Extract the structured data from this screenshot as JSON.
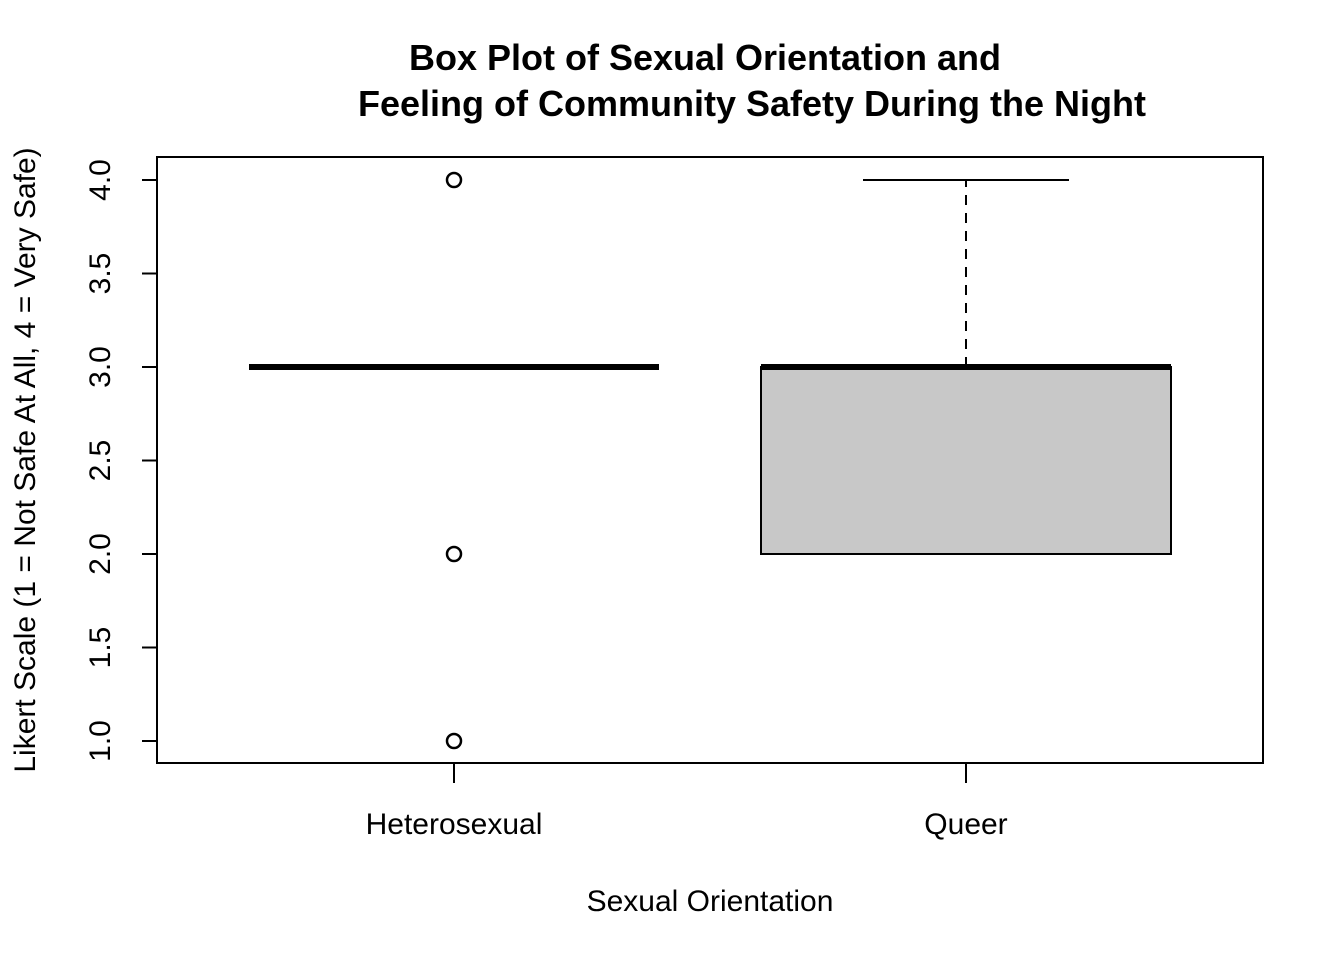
{
  "chart_data": {
    "type": "box",
    "title_lines": [
      "Box Plot of Sexual Orientation and",
      "Feeling of Community Safety During the Night"
    ],
    "xlabel": "Sexual Orientation",
    "ylabel": "Likert Scale (1 = Not Safe At All, 4 = Very Safe)",
    "ylim": [
      0.89,
      4.12
    ],
    "yticks": [
      "1.0",
      "1.5",
      "2.0",
      "2.5",
      "3.0",
      "3.5",
      "4.0"
    ],
    "yticks_values": [
      1.0,
      1.5,
      2.0,
      2.5,
      3.0,
      3.5,
      4.0
    ],
    "grid": false,
    "categories": [
      "Heterosexual",
      "Queer"
    ],
    "boxes": [
      {
        "category": "Heterosexual",
        "whisker_low": 3.0,
        "q1": 3.0,
        "median": 3.0,
        "q3": 3.0,
        "whisker_high": 3.0,
        "outliers": [
          4.0,
          2.0,
          1.0
        ],
        "fill": "#ffffff"
      },
      {
        "category": "Queer",
        "whisker_low": 2.0,
        "q1": 2.0,
        "median": 3.0,
        "q3": 3.0,
        "whisker_high": 4.0,
        "outliers": [],
        "fill": "#c8c8c8"
      }
    ]
  }
}
